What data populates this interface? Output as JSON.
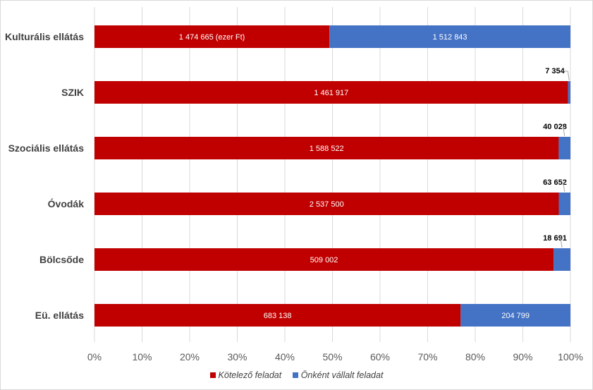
{
  "chart_data": {
    "type": "bar",
    "orientation": "horizontal",
    "stacked": "percent",
    "categories": [
      "Kulturális ellátás",
      "SZIK",
      "Szociális ellátás",
      "Óvodák",
      "Bölcsőde",
      "Eü. ellátás"
    ],
    "series": [
      {
        "name": "Kötelező feladat",
        "color": "#c00000",
        "values": [
          1474665,
          1461917,
          1588522,
          2537500,
          509002,
          683138
        ],
        "labels": [
          "1 474 665 (ezer Ft)",
          "1 461 917",
          "1 588 522",
          "2 537 500",
          "509 002",
          "683 138"
        ]
      },
      {
        "name": "Önként vállalt feladat",
        "color": "#4472c4",
        "values": [
          1512843,
          7354,
          40028,
          63652,
          18691,
          204799
        ],
        "labels": [
          "1 512 843",
          "7 354",
          "40 028",
          "63 652",
          "18 691",
          "204 799"
        ]
      }
    ],
    "x_ticks": [
      "0%",
      "10%",
      "20%",
      "30%",
      "40%",
      "50%",
      "60%",
      "70%",
      "80%",
      "90%",
      "100%"
    ],
    "xlim": [
      0,
      100
    ],
    "grid": true,
    "legend_position": "bottom"
  }
}
